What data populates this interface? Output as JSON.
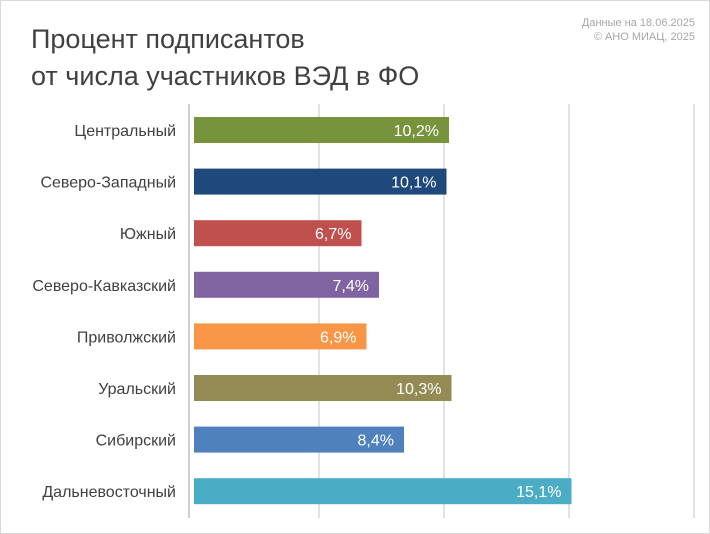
{
  "chart_data": {
    "type": "bar",
    "orientation": "horizontal",
    "title_lines": [
      "Процент подписантов",
      "от числа участников ВЭД в ФО"
    ],
    "source_lines": [
      "Данные на 18.06.2025",
      "© АНО МИАЦ, 2025"
    ],
    "categories": [
      "Центральный",
      "Северо-Западный",
      "Южный",
      "Северо-Кавказский",
      "Приволжский",
      "Уральский",
      "Сибирский",
      "Дальневосточный"
    ],
    "values": [
      10.2,
      10.1,
      6.7,
      7.4,
      6.9,
      10.3,
      8.4,
      15.1
    ],
    "value_labels": [
      "10,2%",
      "10,1%",
      "6,7%",
      "7,4%",
      "6,9%",
      "10,3%",
      "8,4%",
      "15,1%"
    ],
    "colors": [
      "#77933c",
      "#1f497d",
      "#c0504d",
      "#8064a2",
      "#f79646",
      "#948a54",
      "#4f81bd",
      "#4bacc6"
    ],
    "xlim": [
      0,
      20
    ],
    "grid": true,
    "legend": "none"
  }
}
